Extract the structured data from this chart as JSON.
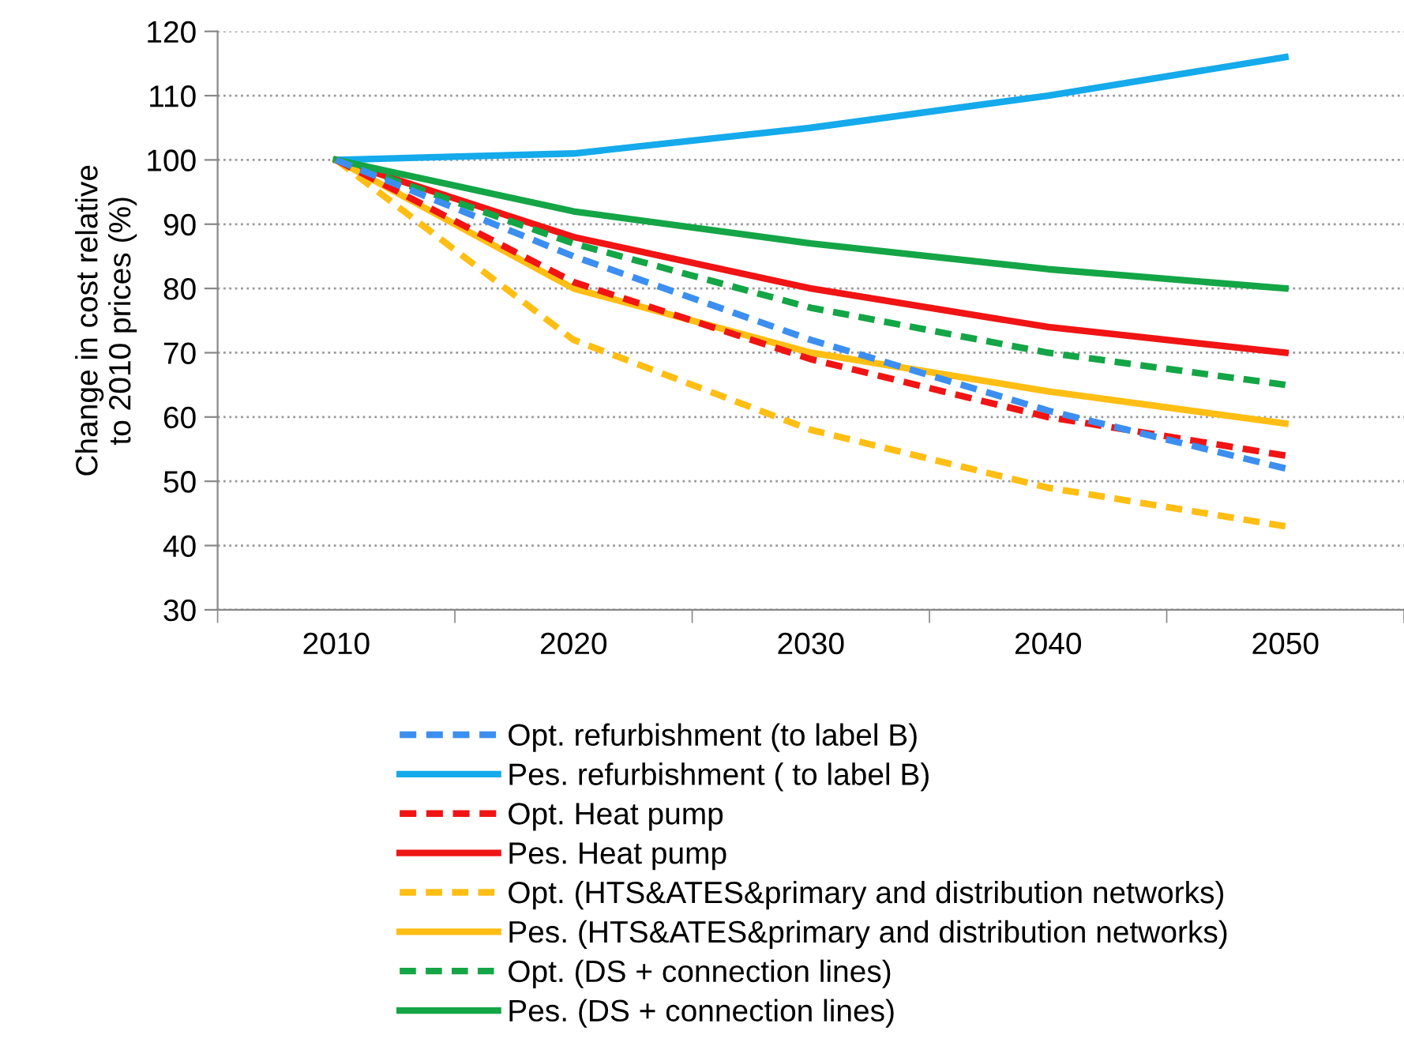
{
  "chart_data": {
    "type": "line",
    "ylabel": "Change in cost relative\nto 2010 prices (%)",
    "categories": [
      "2010",
      "2020",
      "2030",
      "2040",
      "2050"
    ],
    "ylim": [
      30,
      120
    ],
    "yticks": [
      30,
      40,
      50,
      60,
      70,
      80,
      90,
      100,
      110,
      120
    ],
    "grid": "y",
    "legend": "bottom",
    "marker": "none",
    "series": [
      {
        "name": "Opt. refurbishment (to label B)",
        "color": "#3c8ff0",
        "line_style": "dashed",
        "values": [
          100,
          85,
          72,
          61,
          52
        ]
      },
      {
        "name": "Pes. refurbishment ( to label B)",
        "color": "#14aaeb",
        "line_style": "solid",
        "values": [
          100,
          101,
          105,
          110,
          116
        ]
      },
      {
        "name": "Opt. Heat pump",
        "color": "#f01414",
        "line_style": "dashed",
        "values": [
          100,
          81,
          69,
          60,
          54
        ]
      },
      {
        "name": "Pes. Heat pump",
        "color": "#f01414",
        "line_style": "solid",
        "values": [
          100,
          88,
          80,
          74,
          70
        ]
      },
      {
        "name": "Opt. (HTS&ATES&primary and distribution networks)",
        "color": "#ffbe14",
        "line_style": "dashed",
        "values": [
          100,
          72,
          58,
          49,
          43
        ]
      },
      {
        "name": "Pes. (HTS&ATES&primary and distribution networks)",
        "color": "#ffbe14",
        "line_style": "solid",
        "values": [
          100,
          80,
          70,
          64,
          59
        ]
      },
      {
        "name": "Opt. (DS + connection lines)",
        "color": "#14a546",
        "line_style": "dashed",
        "values": [
          100,
          87,
          77,
          70,
          65
        ]
      },
      {
        "name": "Pes. (DS + connection lines)",
        "color": "#14a546",
        "line_style": "solid",
        "values": [
          100,
          92,
          87,
          83,
          80
        ]
      }
    ]
  }
}
